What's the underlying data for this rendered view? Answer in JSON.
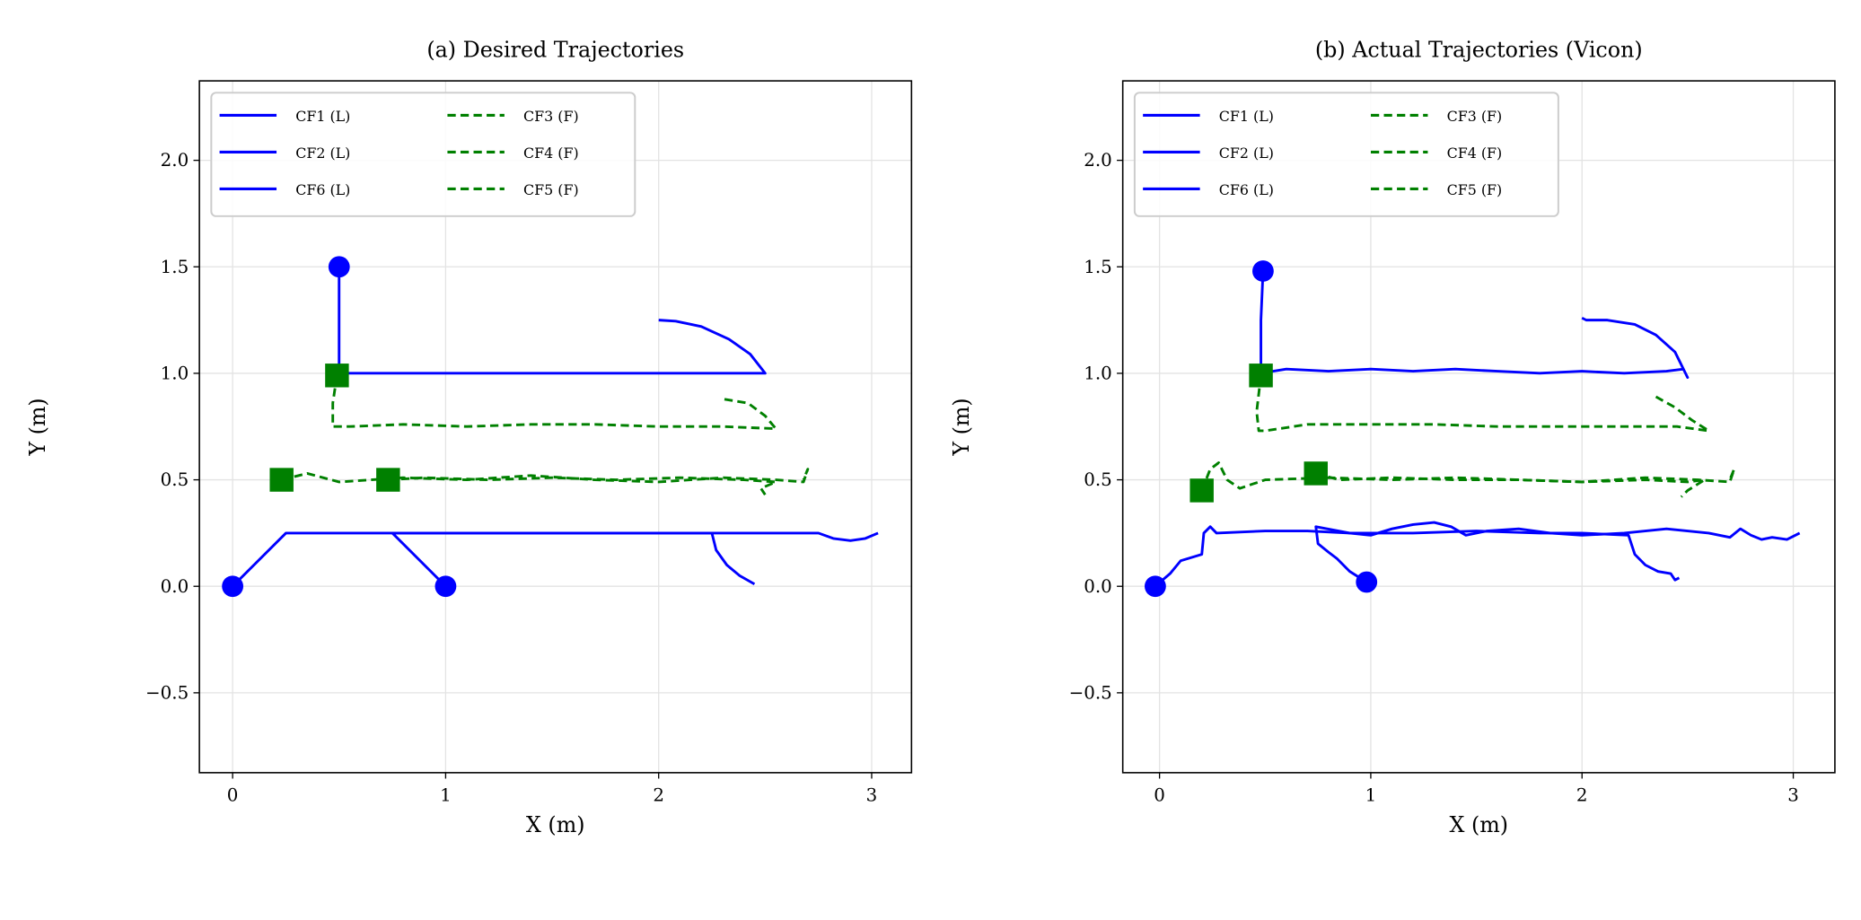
{
  "chart_data": [
    {
      "type": "line",
      "title": "(a) Desired Trajectories",
      "xlabel": "X (m)",
      "ylabel": "Y (m)",
      "xlim": [
        -0.156,
        3.187
      ],
      "ylim": [
        -0.875,
        2.373
      ],
      "xticks": [
        0,
        1,
        2,
        3
      ],
      "xtick_labels": [
        "0",
        "1",
        "2",
        "3"
      ],
      "yticks": [
        -0.5,
        0,
        0.5,
        1,
        1.5,
        2
      ],
      "ytick_labels": [
        "−0.5",
        "0.0",
        "0.5",
        "1.0",
        "1.5",
        "2.0"
      ],
      "grid": true,
      "legend_placement": "top-left",
      "series": [
        {
          "name": "CF1 (L)",
          "role": "leader",
          "color": "#0000ff",
          "style": "solid",
          "start_marker": "circle",
          "x": [
            0,
            0.25,
            2.75,
            2.82,
            2.9,
            2.97,
            3.03
          ],
          "y": [
            0,
            0.25,
            0.25,
            0.225,
            0.215,
            0.225,
            0.25
          ]
        },
        {
          "name": "CF2 (L)",
          "role": "leader",
          "color": "#0000ff",
          "style": "solid",
          "start_marker": "circle",
          "x": [
            1,
            0.75,
            2.25,
            2.27,
            2.32,
            2.38,
            2.45
          ],
          "y": [
            0,
            0.25,
            0.25,
            0.17,
            0.1,
            0.05,
            0.01
          ]
        },
        {
          "name": "CF6 (L)",
          "role": "leader",
          "color": "#0000ff",
          "style": "solid",
          "start_marker": "circle",
          "x": [
            0.5,
            0.5,
            2.5,
            2.43,
            2.33,
            2.2,
            2.08,
            2.0
          ],
          "y": [
            1.5,
            1.0,
            1.0,
            1.09,
            1.16,
            1.22,
            1.245,
            1.25
          ]
        },
        {
          "name": "CF3 (F)",
          "role": "follower",
          "color": "#008000",
          "style": "dashed",
          "start_marker": "square",
          "x": [
            0.49,
            0.47,
            0.47,
            0.55,
            0.8,
            1.1,
            1.4,
            1.7,
            2.0,
            2.3,
            2.55,
            2.5,
            2.42,
            2.3
          ],
          "y": [
            0.99,
            0.86,
            0.75,
            0.75,
            0.76,
            0.75,
            0.76,
            0.76,
            0.75,
            0.75,
            0.74,
            0.8,
            0.86,
            0.88
          ]
        },
        {
          "name": "CF4 (F)",
          "role": "follower",
          "color": "#008000",
          "style": "dashed",
          "start_marker": "square",
          "x": [
            0.23,
            0.35,
            0.5,
            0.8,
            1.1,
            1.4,
            1.7,
            2.0,
            2.3,
            2.55,
            2.68,
            2.7,
            2.68
          ],
          "y": [
            0.5,
            0.53,
            0.49,
            0.51,
            0.5,
            0.52,
            0.5,
            0.49,
            0.51,
            0.5,
            0.49,
            0.55,
            0.5
          ]
        },
        {
          "name": "CF5 (F)",
          "role": "follower",
          "color": "#008000",
          "style": "dashed",
          "start_marker": "square",
          "x": [
            0.73,
            0.9,
            1.2,
            1.5,
            1.8,
            2.1,
            2.4,
            2.55,
            2.48,
            2.5
          ],
          "y": [
            0.5,
            0.51,
            0.5,
            0.51,
            0.5,
            0.51,
            0.5,
            0.49,
            0.46,
            0.43
          ]
        }
      ]
    },
    {
      "type": "line",
      "title": "(b) Actual Trajectories (Vicon)",
      "xlabel": "X (m)",
      "ylabel": "Y (m)",
      "xlim": [
        -0.174,
        3.197
      ],
      "ylim": [
        -0.875,
        2.373
      ],
      "xticks": [
        0,
        1,
        2,
        3
      ],
      "xtick_labels": [
        "0",
        "1",
        "2",
        "3"
      ],
      "yticks": [
        -0.5,
        0,
        0.5,
        1,
        1.5,
        2
      ],
      "ytick_labels": [
        "−0.5",
        "0.0",
        "0.5",
        "1.0",
        "1.5",
        "2.0"
      ],
      "grid": true,
      "legend_placement": "top-left",
      "series": [
        {
          "name": "CF1 (L)",
          "role": "leader",
          "color": "#0000ff",
          "style": "solid",
          "start_marker": "circle",
          "x": [
            -0.02,
            0.05,
            0.1,
            0.2,
            0.21,
            0.24,
            0.27,
            0.5,
            0.7,
            0.9,
            1.0,
            1.1,
            1.2,
            1.3,
            1.38,
            1.45,
            1.55,
            1.7,
            1.85,
            2.0,
            2.2,
            2.4,
            2.5,
            2.6,
            2.7,
            2.75,
            2.8,
            2.85,
            2.9,
            2.97,
            3.03
          ],
          "y": [
            0,
            0.06,
            0.12,
            0.15,
            0.25,
            0.28,
            0.25,
            0.26,
            0.26,
            0.25,
            0.24,
            0.27,
            0.29,
            0.3,
            0.28,
            0.24,
            0.26,
            0.27,
            0.25,
            0.24,
            0.25,
            0.27,
            0.26,
            0.25,
            0.23,
            0.27,
            0.24,
            0.22,
            0.23,
            0.22,
            0.25
          ]
        },
        {
          "name": "CF2 (L)",
          "role": "leader",
          "color": "#0000ff",
          "style": "solid",
          "start_marker": "circle",
          "x": [
            0.98,
            0.9,
            0.84,
            0.8,
            0.75,
            0.74,
            0.9,
            1.2,
            1.5,
            1.8,
            2.0,
            2.22,
            2.25,
            2.3,
            2.36,
            2.42,
            2.44,
            2.46
          ],
          "y": [
            0.02,
            0.07,
            0.13,
            0.16,
            0.2,
            0.28,
            0.25,
            0.25,
            0.26,
            0.25,
            0.25,
            0.24,
            0.15,
            0.1,
            0.07,
            0.06,
            0.03,
            0.04
          ]
        },
        {
          "name": "CF6 (L)",
          "role": "leader",
          "color": "#0000ff",
          "style": "solid",
          "start_marker": "circle",
          "x": [
            0.49,
            0.48,
            0.48,
            0.6,
            0.8,
            1.0,
            1.2,
            1.4,
            1.6,
            1.8,
            2.0,
            2.2,
            2.4,
            2.48,
            2.5,
            2.44,
            2.35,
            2.25,
            2.12,
            2.02,
            2.0
          ],
          "y": [
            1.48,
            1.25,
            1.0,
            1.02,
            1.01,
            1.02,
            1.01,
            1.02,
            1.01,
            1.0,
            1.01,
            1.0,
            1.01,
            1.02,
            0.98,
            1.1,
            1.18,
            1.23,
            1.25,
            1.25,
            1.26
          ]
        },
        {
          "name": "CF3 (F)",
          "role": "follower",
          "color": "#008000",
          "style": "dashed",
          "start_marker": "square",
          "x": [
            0.48,
            0.46,
            0.47,
            0.5,
            0.7,
            1.0,
            1.3,
            1.6,
            1.9,
            2.2,
            2.45,
            2.6,
            2.52,
            2.44,
            2.35
          ],
          "y": [
            0.99,
            0.82,
            0.73,
            0.73,
            0.76,
            0.76,
            0.76,
            0.75,
            0.75,
            0.75,
            0.75,
            0.73,
            0.78,
            0.84,
            0.89
          ]
        },
        {
          "name": "CF4 (F)",
          "role": "follower",
          "color": "#008000",
          "style": "dashed",
          "start_marker": "square",
          "x": [
            0.2,
            0.24,
            0.28,
            0.32,
            0.38,
            0.5,
            0.8,
            1.1,
            1.4,
            1.7,
            2.0,
            2.3,
            2.55,
            2.7,
            2.72,
            2.7
          ],
          "y": [
            0.45,
            0.55,
            0.58,
            0.5,
            0.46,
            0.5,
            0.51,
            0.5,
            0.51,
            0.5,
            0.49,
            0.51,
            0.5,
            0.49,
            0.55,
            0.5
          ]
        },
        {
          "name": "CF5 (F)",
          "role": "follower",
          "color": "#008000",
          "style": "dashed",
          "start_marker": "square",
          "x": [
            0.74,
            0.85,
            1.1,
            1.4,
            1.7,
            2.0,
            2.3,
            2.5,
            2.58,
            2.5,
            2.47
          ],
          "y": [
            0.53,
            0.5,
            0.51,
            0.5,
            0.5,
            0.49,
            0.5,
            0.49,
            0.5,
            0.45,
            0.42
          ]
        }
      ]
    }
  ]
}
